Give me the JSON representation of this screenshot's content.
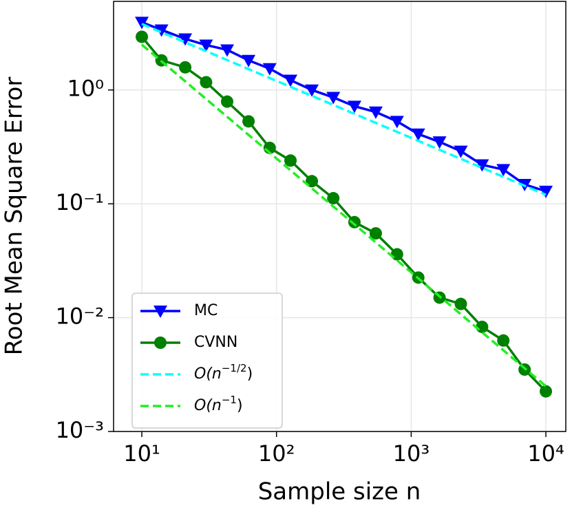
{
  "chart_data": {
    "type": "line",
    "x_label": "Sample size n",
    "y_label": "Root Mean Square Error",
    "xlog": true,
    "ylog": true,
    "grid": true,
    "legend": "lower left",
    "x": [
      10,
      14,
      21,
      30,
      43,
      62,
      89,
      127,
      183,
      264,
      379,
      546,
      785,
      1129,
      1624,
      2336,
      3360,
      4833,
      6952,
      10000
    ],
    "xlim": [
      6.17,
      14060
    ],
    "ylim": [
      0.001,
      6
    ],
    "xticks": [
      {
        "value": 10,
        "label": "10¹"
      },
      {
        "value": 100,
        "label": "10²"
      },
      {
        "value": 1000,
        "label": "10³"
      },
      {
        "value": 10000,
        "label": "10⁴"
      }
    ],
    "yticks": [
      {
        "value": 0.001,
        "label": "10⁻³"
      },
      {
        "value": 0.01,
        "label": "10⁻²"
      },
      {
        "value": 0.1,
        "label": "10⁻¹"
      },
      {
        "value": 1,
        "label": "10⁰"
      }
    ],
    "series": [
      {
        "name": "MC",
        "color": "#0000ff",
        "marker": "triangle-down",
        "dashed": false,
        "values": [
          3.93,
          3.37,
          2.81,
          2.48,
          2.25,
          1.82,
          1.54,
          1.22,
          1.0,
          0.86,
          0.72,
          0.64,
          0.53,
          0.41,
          0.35,
          0.29,
          0.22,
          0.2,
          0.148,
          0.129
        ]
      },
      {
        "name": "CVNN",
        "color": "#008000",
        "marker": "circle",
        "dashed": false,
        "values": [
          2.93,
          1.82,
          1.58,
          1.17,
          0.79,
          0.53,
          0.31,
          0.24,
          0.158,
          0.112,
          0.069,
          0.055,
          0.036,
          0.0225,
          0.015,
          0.0132,
          0.0083,
          0.0063,
          0.0035,
          0.00225
        ]
      },
      {
        "name": "O(n−1/2)",
        "color": "#00ffff",
        "dashed": true,
        "x": [
          10,
          10000
        ],
        "values": [
          3.8,
          0.12
        ]
      },
      {
        "name": "O(n−1)",
        "color": "#22ee22",
        "dashed": true,
        "x": [
          10,
          10000
        ],
        "values": [
          2.5,
          0.0025
        ]
      }
    ]
  }
}
